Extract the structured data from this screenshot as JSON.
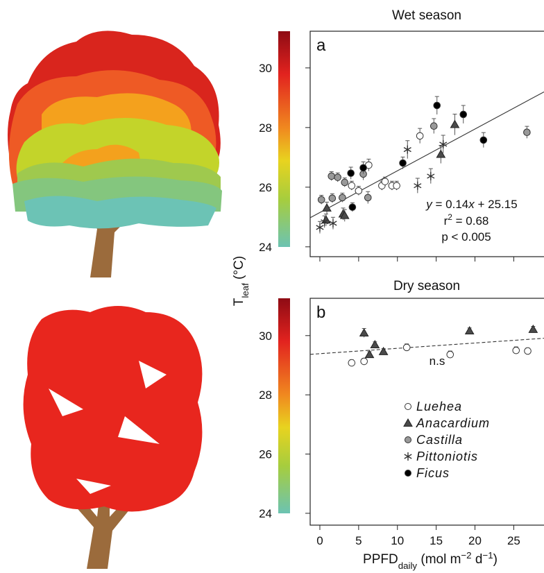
{
  "chart_data": [
    {
      "type": "scatter",
      "title": "Wet season",
      "panel_label": "a",
      "xlim": [
        -1.25,
        28.9
      ],
      "ylim": [
        23.67,
        31.23
      ],
      "xticks": [
        0,
        5,
        10,
        15,
        20,
        25
      ],
      "yticks": [
        24,
        26,
        28,
        30
      ],
      "series": [
        {
          "name": "Luehea",
          "marker": "circle",
          "color": "#ffffff",
          "x": [
            4.1,
            5.0,
            6.3,
            8.0,
            8.4,
            9.3,
            9.9,
            12.9
          ],
          "values": [
            26.05,
            25.88,
            26.74,
            26.05,
            26.19,
            26.05,
            26.05,
            27.72
          ],
          "errors": [
            0.15,
            0.15,
            0.2,
            0.15,
            0.15,
            0.15,
            0.15,
            0.25
          ]
        },
        {
          "name": "Anacardium",
          "marker": "triangle",
          "color": "#4a4a4a",
          "x": [
            0.9,
            0.8,
            3.0,
            3.2,
            15.6,
            17.4
          ],
          "values": [
            25.3,
            24.9,
            25.1,
            25.05,
            27.1,
            28.1
          ],
          "errors": [
            0.2,
            0.2,
            0.2,
            0.2,
            0.3,
            0.35
          ]
        },
        {
          "name": "Castilla",
          "marker": "circle",
          "color": "#999999",
          "x": [
            0.2,
            1.5,
            2.3,
            1.6,
            2.9,
            3.2,
            5.6,
            6.2,
            14.7,
            26.7
          ],
          "values": [
            25.58,
            26.37,
            26.33,
            25.63,
            25.65,
            26.16,
            26.44,
            25.65,
            28.05,
            27.84
          ],
          "errors": [
            0.15,
            0.15,
            0.15,
            0.15,
            0.15,
            0.15,
            0.2,
            0.2,
            0.25,
            0.2
          ]
        },
        {
          "name": "Pittoniotis",
          "marker": "asterisk",
          "color": "#333333",
          "x": [
            0.0,
            0.6,
            1.7,
            11.3,
            15.9,
            12.6,
            14.3
          ],
          "values": [
            24.65,
            24.84,
            24.79,
            27.26,
            27.44,
            26.05,
            26.37
          ],
          "errors": [
            0.2,
            0.2,
            0.2,
            0.3,
            0.3,
            0.25,
            0.25
          ]
        },
        {
          "name": "Ficus",
          "marker": "circle",
          "color": "#000000",
          "x": [
            4.0,
            5.6,
            4.2,
            10.7,
            15.1,
            18.5,
            21.1
          ],
          "values": [
            26.47,
            26.65,
            25.33,
            26.81,
            28.74,
            28.44,
            27.58
          ],
          "errors": [
            0.2,
            0.2,
            0.15,
            0.2,
            0.3,
            0.3,
            0.25
          ]
        }
      ],
      "fit": {
        "slope": 0.14,
        "intercept": 25.15,
        "style": "solid"
      },
      "annotations": [
        [
          {
            "text": "y",
            "italic": true
          },
          {
            "text": " = 0.14"
          },
          {
            "text": "x",
            "italic": true
          },
          {
            "text": " + 25.15"
          }
        ],
        [
          {
            "text": "r"
          },
          {
            "text": "2",
            "sup": true
          },
          {
            "text": " = 0.68"
          }
        ],
        [
          {
            "text": "p < 0.005"
          }
        ]
      ]
    },
    {
      "type": "scatter",
      "title": "Dry season",
      "panel_label": "b",
      "xlim": [
        -1.25,
        28.9
      ],
      "ylim": [
        23.6,
        31.26
      ],
      "xticks": [
        0,
        5,
        10,
        15,
        20,
        25
      ],
      "yticks": [
        24,
        26,
        28,
        30
      ],
      "series": [
        {
          "marker": "circle",
          "color": "#ffffff",
          "x": [
            4.1,
            5.7,
            11.2,
            16.8,
            25.3,
            26.8
          ],
          "values": [
            29.08,
            29.13,
            29.6,
            29.36,
            29.5,
            29.48
          ],
          "errors": [
            0.1,
            0.1,
            0.12,
            0.12,
            0.12,
            0.1
          ]
        },
        {
          "marker": "triangle",
          "color": "#4a4a4a",
          "x": [
            5.7,
            6.4,
            7.1,
            8.2,
            19.3,
            27.5
          ],
          "values": [
            30.09,
            29.36,
            29.69,
            29.46,
            30.16,
            30.21
          ],
          "errors": [
            0.15,
            0.1,
            0.1,
            0.1,
            0.1,
            0.1
          ]
        }
      ],
      "fit": {
        "slope": 0.018,
        "intercept": 29.39,
        "style": "dashed"
      },
      "annotations": [
        [
          {
            "text": "n.s"
          }
        ]
      ],
      "legend": "inside"
    }
  ],
  "y_label": [
    {
      "text": "T"
    },
    {
      "text": "leaf",
      "sub": true
    },
    {
      "text": " (°C)"
    }
  ],
  "x_label": [
    {
      "text": "PPFD"
    },
    {
      "text": "daily",
      "sub": true
    },
    {
      "text": " (mol m"
    },
    {
      "text": "−2",
      "sup": true
    },
    {
      "text": " d"
    },
    {
      "text": "−1",
      "sup": true
    },
    {
      "text": ")"
    }
  ]
}
